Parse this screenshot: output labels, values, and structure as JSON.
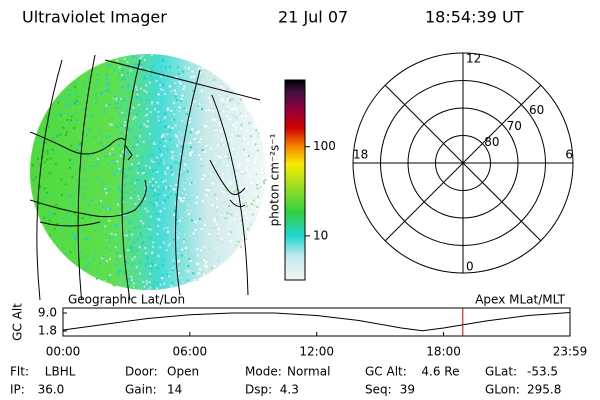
{
  "header": {
    "title": "Ultraviolet Imager",
    "date": "21 Jul 07",
    "time": "18:54:39 UT"
  },
  "colorbar": {
    "label": "photon cm⁻²s⁻¹",
    "log": true,
    "lim": [
      3.2,
      560
    ],
    "ticks": [
      10,
      100
    ]
  },
  "polar": {
    "rlim": [
      90,
      50
    ],
    "mlt_ticks": [
      12,
      18,
      6,
      0
    ],
    "lat_ticks": [
      80,
      70,
      60
    ]
  },
  "chart_data": {
    "type": "line",
    "left_label": "Geographic Lat/Lon",
    "right_label": "Apex MLat/MLT",
    "ylabel": "GC Alt",
    "x": [
      0,
      2,
      4,
      6,
      8,
      10,
      12,
      14,
      16,
      17,
      18,
      20,
      22,
      23.98
    ],
    "series": [
      {
        "name": "GC Alt",
        "color": "#000000",
        "values": [
          2.2,
          4.5,
          6.8,
          8.3,
          9.0,
          9.0,
          8.0,
          6.0,
          3.0,
          1.9,
          3.0,
          5.8,
          8.0,
          9.2
        ]
      }
    ],
    "marker_x": 18.91,
    "marker_color": "#cc0000",
    "xlim": [
      0,
      23.98
    ],
    "xticks": [
      {
        "value": 0,
        "label": "00:00"
      },
      {
        "value": 6,
        "label": "06:00"
      },
      {
        "value": 12,
        "label": "12:00"
      },
      {
        "value": 18,
        "label": "18:00"
      },
      {
        "value": 23.98,
        "label": "23:59"
      }
    ],
    "ylim": [
      -0.2,
      11
    ],
    "yticks": [
      {
        "value": 1.8,
        "label": "1.8"
      },
      {
        "value": 9,
        "label": "9.0"
      }
    ]
  },
  "footer": [
    [
      [
        "Flt:",
        "LBHL"
      ],
      [
        "Door:",
        "Open"
      ],
      [
        "Mode:",
        "Normal"
      ],
      [
        "GC Alt:",
        "4.6 Re"
      ],
      [
        "GLat:",
        "-53.5"
      ]
    ],
    [
      [
        "IP:",
        "36.0"
      ],
      [
        "Gain:",
        "14"
      ],
      [
        "Dsp:",
        "4.3"
      ],
      [
        "Seq:",
        "39"
      ],
      [
        "GLon:",
        "295.8"
      ]
    ]
  ]
}
